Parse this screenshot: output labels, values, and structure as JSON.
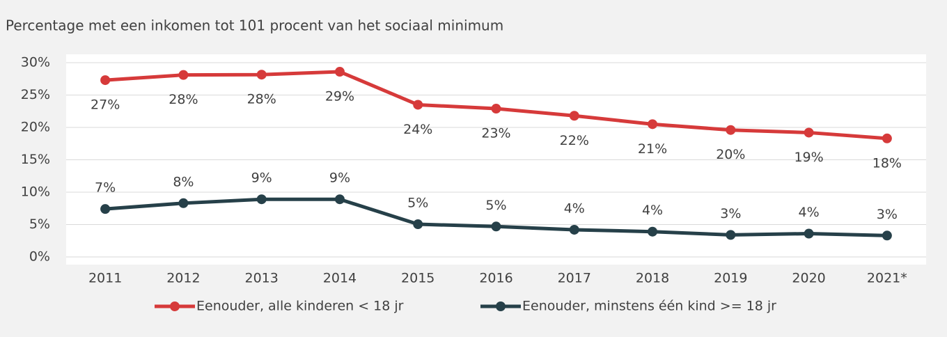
{
  "chart_data": {
    "type": "line",
    "title": "Percentage met een inkomen tot 101 procent van het sociaal minimum",
    "categories": [
      "2011",
      "2012",
      "2013",
      "2014",
      "2015",
      "2016",
      "2017",
      "2018",
      "2019",
      "2020",
      "2021*"
    ],
    "series": [
      {
        "name": "Eenouder, alle kinderen < 18 jr",
        "color": "#d63a3a",
        "values": [
          27.3,
          28.1,
          28.15,
          28.6,
          23.5,
          22.9,
          21.8,
          20.5,
          19.6,
          19.2,
          18.3
        ],
        "value_labels": [
          "27%",
          "28%",
          "28%",
          "29%",
          "24%",
          "23%",
          "22%",
          "21%",
          "20%",
          "19%",
          "18%"
        ]
      },
      {
        "name": "Eenouder, minstens één kind >= 18 jr",
        "color": "#264049",
        "values": [
          7.4,
          8.3,
          8.9,
          8.9,
          5.05,
          4.7,
          4.2,
          3.9,
          3.4,
          3.6,
          3.3
        ],
        "value_labels": [
          "7%",
          "8%",
          "9%",
          "9%",
          "5%",
          "5%",
          "4%",
          "4%",
          "3%",
          "4%",
          "3%"
        ]
      }
    ],
    "ylim": [
      0,
      30
    ],
    "yticks": [
      {
        "value": 0,
        "label": "0%"
      },
      {
        "value": 5,
        "label": "5%"
      },
      {
        "value": 10,
        "label": "10%"
      },
      {
        "value": 15,
        "label": "15%"
      },
      {
        "value": 20,
        "label": "20%"
      },
      {
        "value": 25,
        "label": "25%"
      },
      {
        "value": 30,
        "label": "30%"
      }
    ],
    "grid": true,
    "legend": "bottom"
  }
}
